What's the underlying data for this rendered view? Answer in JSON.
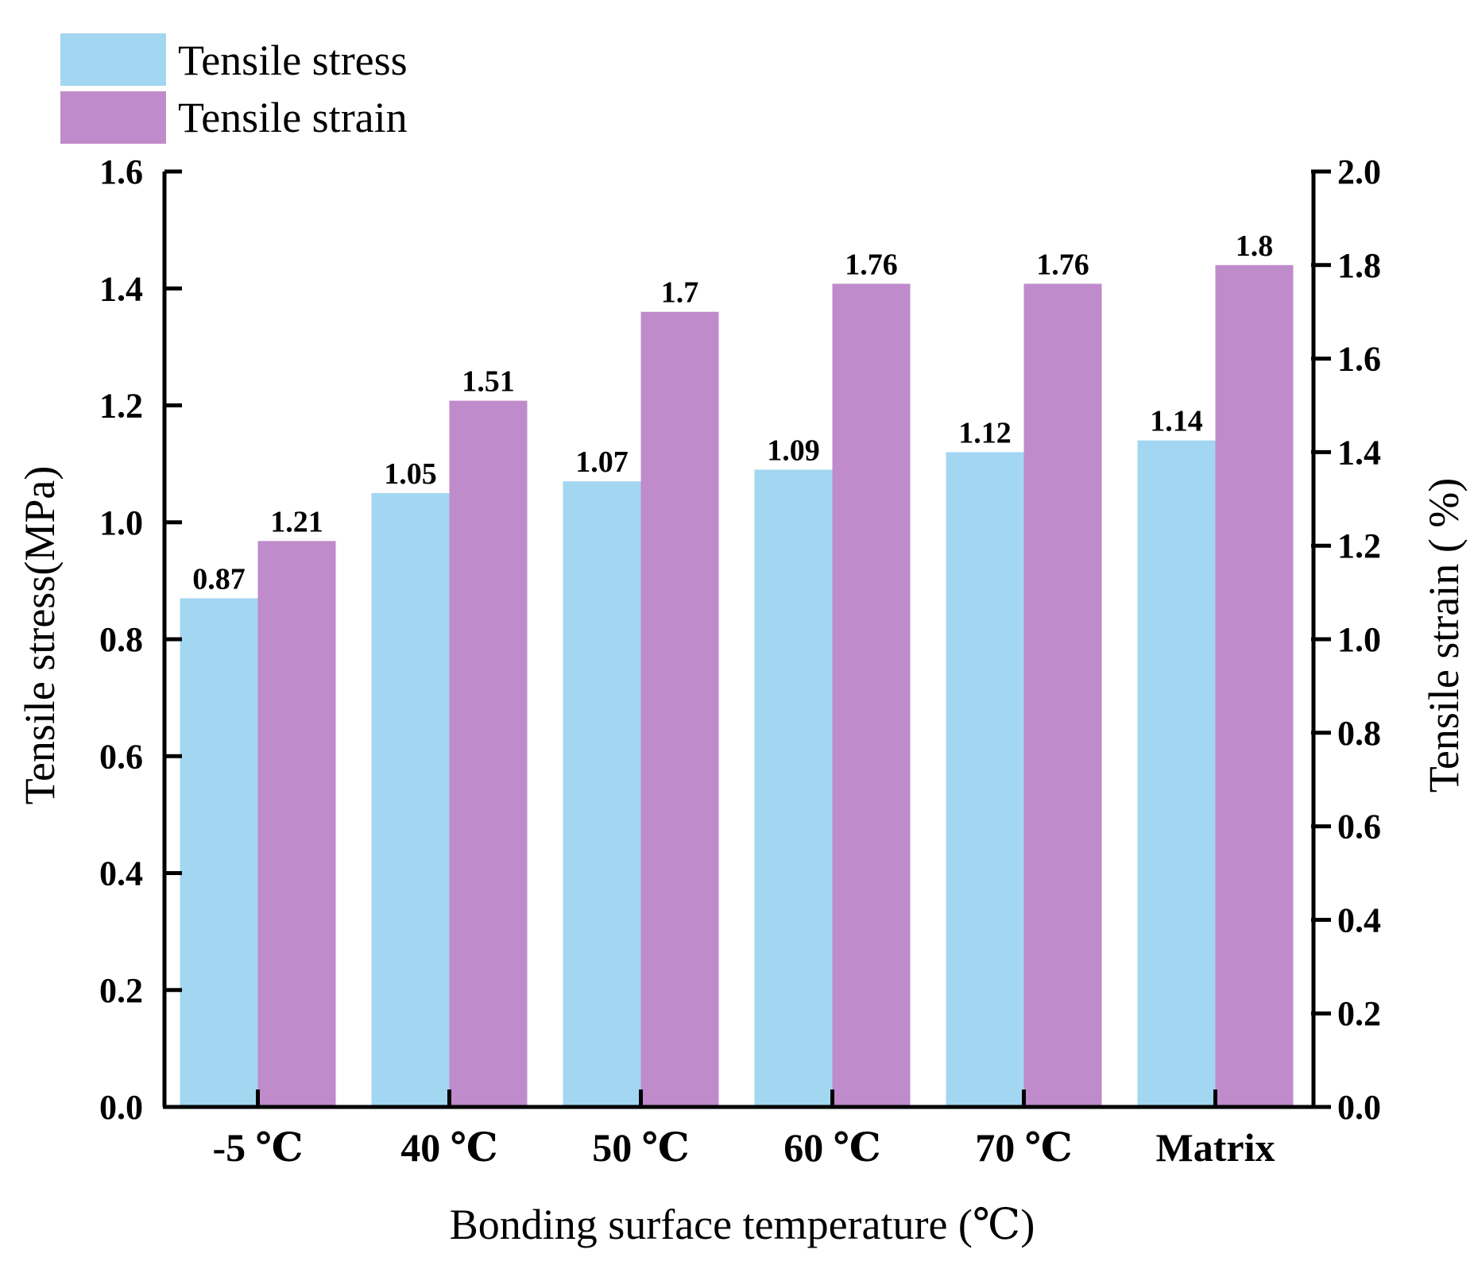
{
  "chart_data": {
    "type": "bar",
    "categories": [
      "-5 ℃",
      "40 ℃",
      "50 ℃",
      "60 ℃",
      "70 ℃",
      "Matrix"
    ],
    "series": [
      {
        "name": "Tensile stress",
        "axis": "left",
        "color": "#a3d6f1",
        "values": [
          0.87,
          1.05,
          1.07,
          1.09,
          1.12,
          1.14
        ],
        "labels": [
          "0.87",
          "1.05",
          "1.07",
          "1.09",
          "1.12",
          "1.14"
        ]
      },
      {
        "name": "Tensile strain",
        "axis": "right",
        "color": "#bf8bcb",
        "values": [
          1.21,
          1.51,
          1.7,
          1.76,
          1.76,
          1.8
        ],
        "labels": [
          "1.21",
          "1.51",
          "1.7",
          "1.76",
          "1.76",
          "1.8"
        ]
      }
    ],
    "xlabel": "Bonding surface temperature (℃)",
    "ylabel_left": "Tensile stress(MPa)",
    "ylabel_right": "Tensile strain ( %)",
    "ylim_left": [
      0,
      1.6
    ],
    "ylim_right": [
      0,
      2.0
    ],
    "yticks_left": [
      "0.0",
      "0.2",
      "0.4",
      "0.6",
      "0.8",
      "1.0",
      "1.2",
      "1.4",
      "1.6"
    ],
    "yticks_right": [
      "0.0",
      "0.2",
      "0.4",
      "0.6",
      "0.8",
      "1.0",
      "1.2",
      "1.4",
      "1.6",
      "1.8",
      "2.0"
    ],
    "legend": [
      "Tensile stress",
      "Tensile strain"
    ],
    "legend_position": "top-left",
    "grid": false
  }
}
